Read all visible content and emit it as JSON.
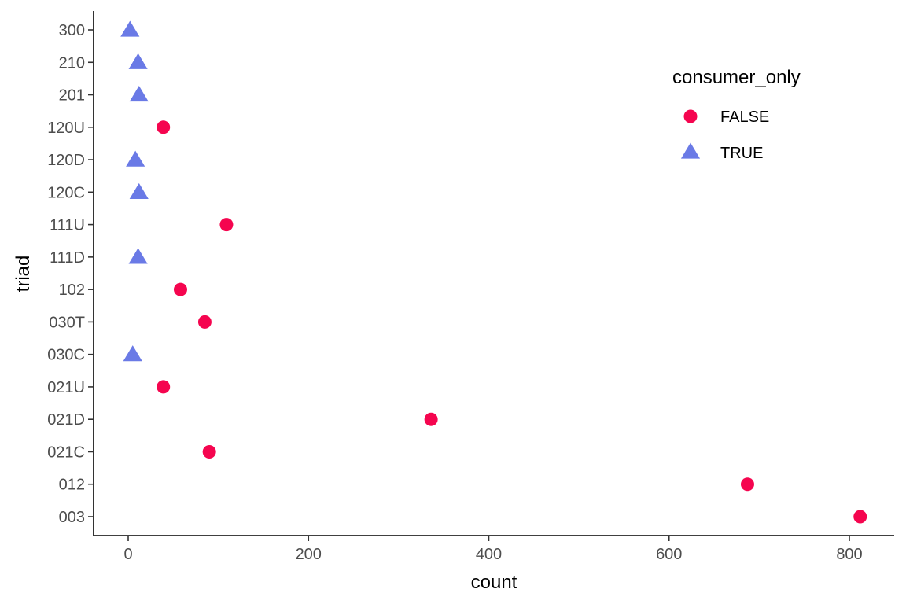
{
  "chart_data": {
    "type": "scatter",
    "xlabel": "count",
    "ylabel": "triad",
    "xlim": [
      -40,
      850
    ],
    "x_ticks": [
      0,
      200,
      400,
      600,
      800
    ],
    "categories": [
      "003",
      "012",
      "021C",
      "021D",
      "021U",
      "030C",
      "030T",
      "102",
      "111D",
      "111U",
      "120C",
      "120D",
      "120U",
      "201",
      "210",
      "300"
    ],
    "grid": false,
    "legend": {
      "title": "consumer_only",
      "position": "top-right",
      "entries": [
        {
          "label": "FALSE",
          "shape": "circle",
          "color": "#F5054F"
        },
        {
          "label": "TRUE",
          "shape": "triangle",
          "color": "#6A7AE6"
        }
      ]
    },
    "series": [
      {
        "name": "FALSE",
        "shape": "circle",
        "color": "#F5054F",
        "points": [
          {
            "triad": "003",
            "count": 812
          },
          {
            "triad": "012",
            "count": 687
          },
          {
            "triad": "021C",
            "count": 90
          },
          {
            "triad": "021D",
            "count": 336
          },
          {
            "triad": "021U",
            "count": 39
          },
          {
            "triad": "030T",
            "count": 85
          },
          {
            "triad": "102",
            "count": 58
          },
          {
            "triad": "111U",
            "count": 109
          },
          {
            "triad": "120U",
            "count": 39
          }
        ]
      },
      {
        "name": "TRUE",
        "shape": "triangle",
        "color": "#6A7AE6",
        "points": [
          {
            "triad": "030C",
            "count": 5
          },
          {
            "triad": "111D",
            "count": 11
          },
          {
            "triad": "120C",
            "count": 12
          },
          {
            "triad": "120D",
            "count": 8
          },
          {
            "triad": "201",
            "count": 12
          },
          {
            "triad": "210",
            "count": 11
          },
          {
            "triad": "300",
            "count": 2
          }
        ]
      }
    ]
  }
}
